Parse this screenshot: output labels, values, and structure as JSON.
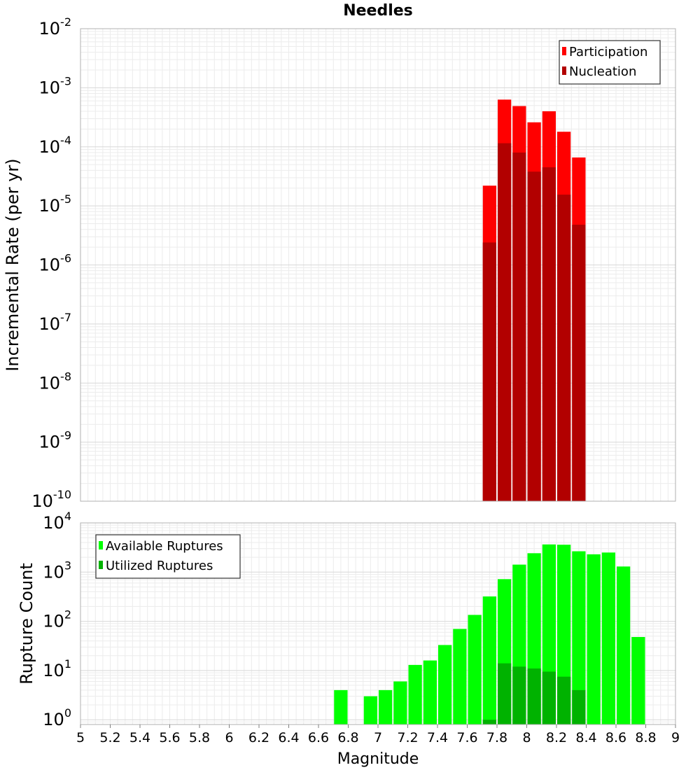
{
  "chart_data": [
    {
      "type": "bar",
      "title": "Needles",
      "xlabel": "",
      "ylabel": "Incremental Rate (per yr)",
      "yscale": "log",
      "xlim": [
        5,
        9
      ],
      "ylim": [
        1e-10,
        0.01
      ],
      "ytick_exponents": [
        "-10",
        "-9",
        "-8",
        "-7",
        "-6",
        "-5",
        "-4",
        "-3",
        "-2"
      ],
      "grid": true,
      "legend_position": "top-right",
      "bin_width": 0.1,
      "series": [
        {
          "name": "Participation",
          "color": "#ff0000",
          "x": [
            7.75,
            7.85,
            7.95,
            8.05,
            8.15,
            8.25,
            8.35
          ],
          "values": [
            2.2e-05,
            0.00063,
            0.00049,
            0.00026,
            0.0004,
            0.00018,
            6.6e-05
          ]
        },
        {
          "name": "Nucleation",
          "color": "#b20000",
          "x": [
            7.75,
            7.85,
            7.95,
            8.05,
            8.15,
            8.25,
            8.35
          ],
          "values": [
            2.4e-06,
            0.000115,
            8e-05,
            3.8e-05,
            4.5e-05,
            1.55e-05,
            4.8e-06
          ]
        }
      ]
    },
    {
      "type": "bar",
      "title": "",
      "xlabel": "Magnitude",
      "ylabel": "Rupture Count",
      "yscale": "log",
      "xlim": [
        5,
        9
      ],
      "ylim": [
        0.8,
        10000.0
      ],
      "ytick_exponents": [
        "0",
        "1",
        "2",
        "3",
        "4"
      ],
      "xticks": [
        "5",
        "5.2",
        "5.4",
        "5.6",
        "5.8",
        "6",
        "6.2",
        "6.4",
        "6.6",
        "6.8",
        "7",
        "7.2",
        "7.4",
        "7.6",
        "7.8",
        "8",
        "8.2",
        "8.4",
        "8.6",
        "8.8",
        "9"
      ],
      "grid": true,
      "legend_position": "top-left",
      "bin_width": 0.1,
      "series": [
        {
          "name": "Available Ruptures",
          "color": "#00ff00",
          "x": [
            6.75,
            6.95,
            7.05,
            7.15,
            7.25,
            7.35,
            7.45,
            7.55,
            7.65,
            7.75,
            7.85,
            7.95,
            8.05,
            8.15,
            8.25,
            8.35,
            8.45,
            8.55,
            8.65,
            8.75
          ],
          "values": [
            4,
            3,
            4,
            6,
            13,
            16,
            33,
            70,
            135,
            320,
            720,
            1420,
            2420,
            3650,
            3600,
            2650,
            2300,
            2500,
            1300,
            48
          ]
        },
        {
          "name": "Utilized Ruptures",
          "color": "#00b200",
          "x": [
            7.75,
            7.85,
            7.95,
            8.05,
            8.15,
            8.25,
            8.35
          ],
          "values": [
            1,
            14,
            12,
            11,
            9.5,
            7.5,
            4
          ]
        }
      ]
    }
  ]
}
